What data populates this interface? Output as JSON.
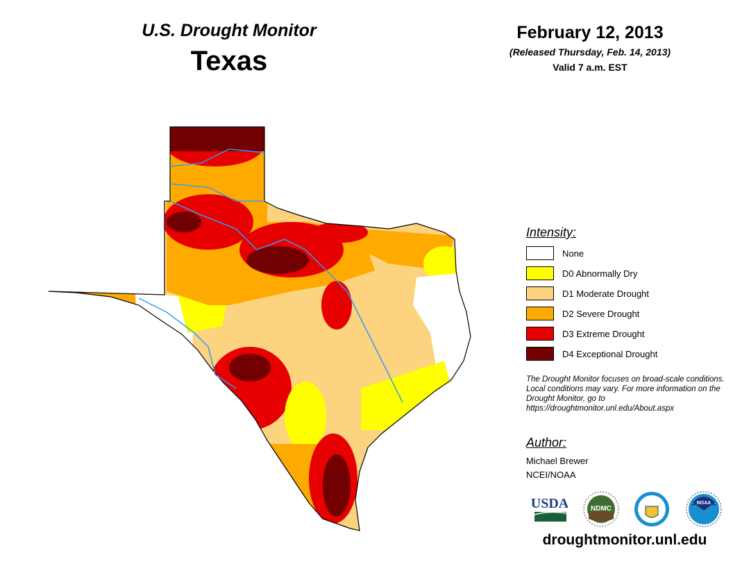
{
  "header": {
    "title": "U.S. Drought Monitor",
    "region": "Texas",
    "date": "February 12, 2013",
    "released": "(Released Thursday, Feb. 14, 2013)",
    "valid": "Valid 7 a.m. EST"
  },
  "legend": {
    "title": "Intensity:",
    "items": [
      {
        "label": "None",
        "color": "#ffffff"
      },
      {
        "label": "D0 Abnormally Dry",
        "color": "#ffff00"
      },
      {
        "label": "D1 Moderate Drought",
        "color": "#fcd37f"
      },
      {
        "label": "D2 Severe Drought",
        "color": "#ffaa00"
      },
      {
        "label": "D3 Extreme Drought",
        "color": "#e60000"
      },
      {
        "label": "D4 Exceptional Drought",
        "color": "#730000"
      }
    ]
  },
  "note": "The Drought Monitor focuses on broad-scale conditions. Local conditions may vary. For more information on the Drought Monitor, go to https://droughtmonitor.unl.edu/About.aspx",
  "author": {
    "title": "Author:",
    "name": "Michael Brewer",
    "org": "NCEI/NOAA"
  },
  "logos": {
    "usda": "USDA",
    "ndmc": "NDMC",
    "noaa": "NOAA"
  },
  "url": "droughtmonitor.unl.edu",
  "colors": {
    "river": "#3399ff",
    "border": "#000000"
  }
}
